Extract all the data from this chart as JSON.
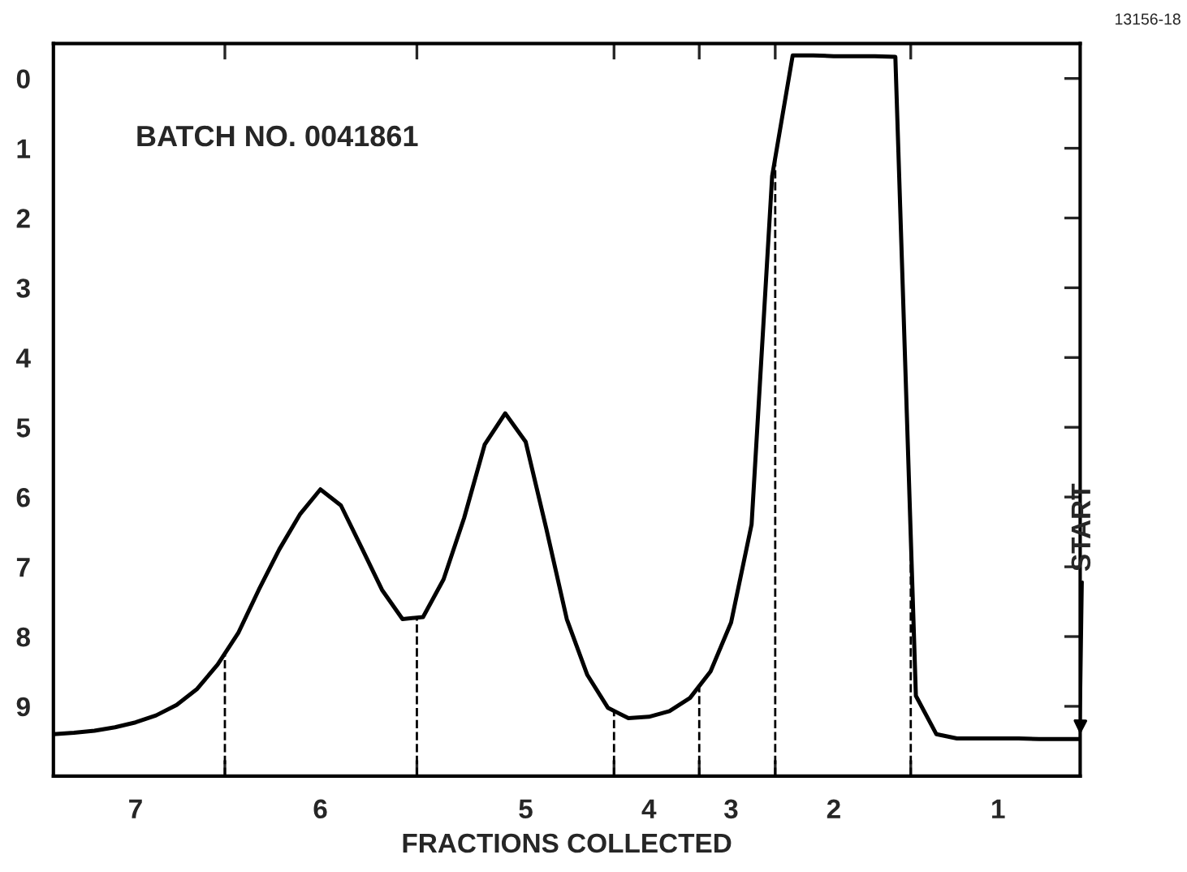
{
  "chart_data": {
    "type": "line",
    "xlabel": "FRACTIONS COLLECTED",
    "annotations": [
      "BATCH NO. 0041861",
      "13156-18",
      {
        "text": "START",
        "y": 9.47
      }
    ],
    "categories": [
      null,
      null,
      null,
      null,
      "7",
      null,
      null,
      null,
      null,
      null,
      null,
      null,
      null,
      "6",
      null,
      null,
      null,
      null,
      null,
      null,
      null,
      null,
      null,
      "5",
      null,
      null,
      null,
      null,
      null,
      "4",
      null,
      null,
      null,
      "3",
      null,
      null,
      null,
      null,
      "2",
      null,
      null,
      null,
      null,
      null,
      null,
      null,
      "1",
      null,
      null,
      null,
      null
    ],
    "series": [
      {
        "color": "#000000",
        "values": [
          9.4,
          9.38,
          9.35,
          9.3,
          9.23,
          9.13,
          8.98,
          8.75,
          8.4,
          7.95,
          7.33,
          6.75,
          6.25,
          5.89,
          6.12,
          6.72,
          7.33,
          7.75,
          7.72,
          7.18,
          6.3,
          5.25,
          4.8,
          5.21,
          6.45,
          7.75,
          8.55,
          9.02,
          9.17,
          9.15,
          9.07,
          8.88,
          8.5,
          7.8,
          6.39,
          1.4,
          -0.33,
          -0.33,
          -0.32,
          -0.32,
          -0.32,
          -0.31,
          8.85,
          9.4,
          9.46,
          9.46,
          9.46,
          9.46,
          9.47,
          9.47,
          9.47
        ]
      }
    ],
    "ylim": [
      10,
      -0.5
    ],
    "yticks": [
      0,
      1,
      2,
      3,
      4,
      5,
      6,
      7,
      8,
      9
    ],
    "grid": false,
    "marker": "none",
    "line_style": "solid"
  }
}
